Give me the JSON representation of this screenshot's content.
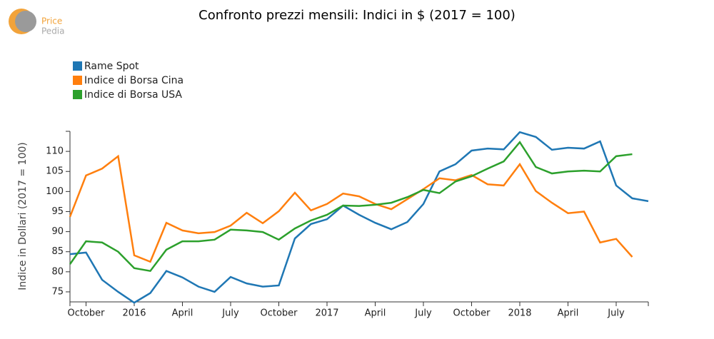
{
  "logo": {
    "top": "Price",
    "bottom": "Pedia"
  },
  "chart_data": {
    "type": "line",
    "title": "Confronto prezzi mensili: Indici in $ (2017 = 100)",
    "y_axis_label": "Indice in Dollari (2017 = 100)",
    "categories": [
      null,
      "October",
      null,
      null,
      "2016",
      null,
      null,
      "April",
      null,
      null,
      "July",
      null,
      null,
      "October",
      null,
      null,
      "2017",
      null,
      null,
      "April",
      null,
      null,
      "July",
      null,
      null,
      "October",
      null,
      null,
      "2018",
      null,
      null,
      "April",
      null,
      null,
      "July",
      null,
      null
    ],
    "series": [
      {
        "name": "Rame Spot",
        "color": "#1f77b4",
        "values": [
          84.4,
          84.8,
          78.0,
          75.0,
          72.3,
          74.7,
          80.2,
          78.6,
          76.3,
          75.0,
          78.7,
          77.1,
          76.3,
          76.6,
          88.3,
          91.9,
          93.1,
          96.5,
          94.2,
          92.2,
          90.6,
          92.4,
          96.9,
          105.0,
          106.8,
          110.2,
          110.7,
          110.5,
          114.8,
          113.6,
          110.4,
          110.9,
          110.7,
          112.5,
          101.5,
          98.3,
          97.6
        ]
      },
      {
        "name": "Indice di Borsa Cina",
        "color": "#ff7f0e",
        "values": [
          93.7,
          104.0,
          105.7,
          108.8,
          84.1,
          82.5,
          92.2,
          90.3,
          89.6,
          89.9,
          91.5,
          94.7,
          92.1,
          95.1,
          99.7,
          95.3,
          96.9,
          99.5,
          98.8,
          96.9,
          95.6,
          98.1,
          100.6,
          103.3,
          102.8,
          104.1,
          101.8,
          101.5,
          106.8,
          100.1,
          97.2,
          94.6,
          95.0,
          87.3,
          88.2,
          83.7,
          null
        ]
      },
      {
        "name": "Indice di Borsa USA",
        "color": "#2ca02c",
        "values": [
          81.9,
          87.6,
          87.3,
          85.0,
          80.9,
          80.2,
          85.5,
          87.6,
          87.6,
          88.0,
          90.5,
          90.3,
          89.9,
          88.0,
          90.8,
          92.8,
          94.2,
          96.5,
          96.4,
          96.7,
          97.2,
          98.6,
          100.4,
          99.6,
          102.5,
          103.8,
          105.7,
          107.5,
          112.3,
          106.1,
          104.5,
          105.0,
          105.2,
          105.0,
          108.8,
          109.3,
          null
        ]
      }
    ],
    "ylim": [
      72.5,
      115
    ],
    "yticks": [
      75,
      80,
      85,
      90,
      95,
      100,
      105,
      110
    ]
  }
}
